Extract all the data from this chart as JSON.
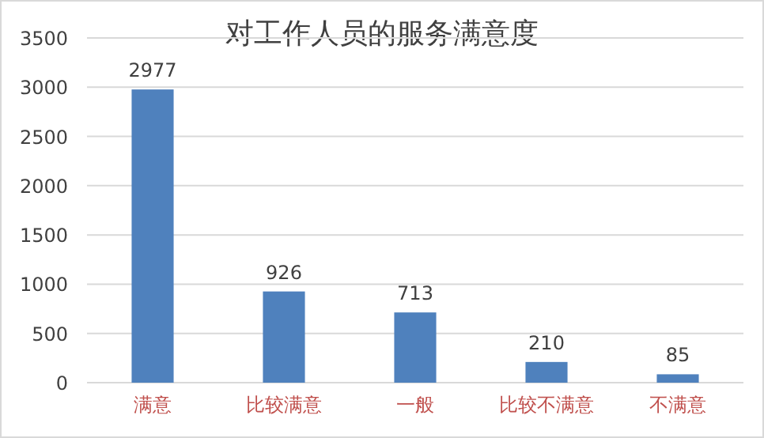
{
  "chart_data": {
    "type": "bar",
    "title": "对工作人员的服务满意度",
    "categories": [
      "满意",
      "比较满意",
      "一般",
      "比较不满意",
      "不满意"
    ],
    "values": [
      2977,
      926,
      713,
      210,
      85
    ],
    "color": "#4f81bd",
    "ylim": [
      0,
      3500
    ],
    "yticks": [
      0,
      500,
      1000,
      1500,
      2000,
      2500,
      3000,
      3500
    ],
    "grid": "y",
    "data_labels": true
  }
}
